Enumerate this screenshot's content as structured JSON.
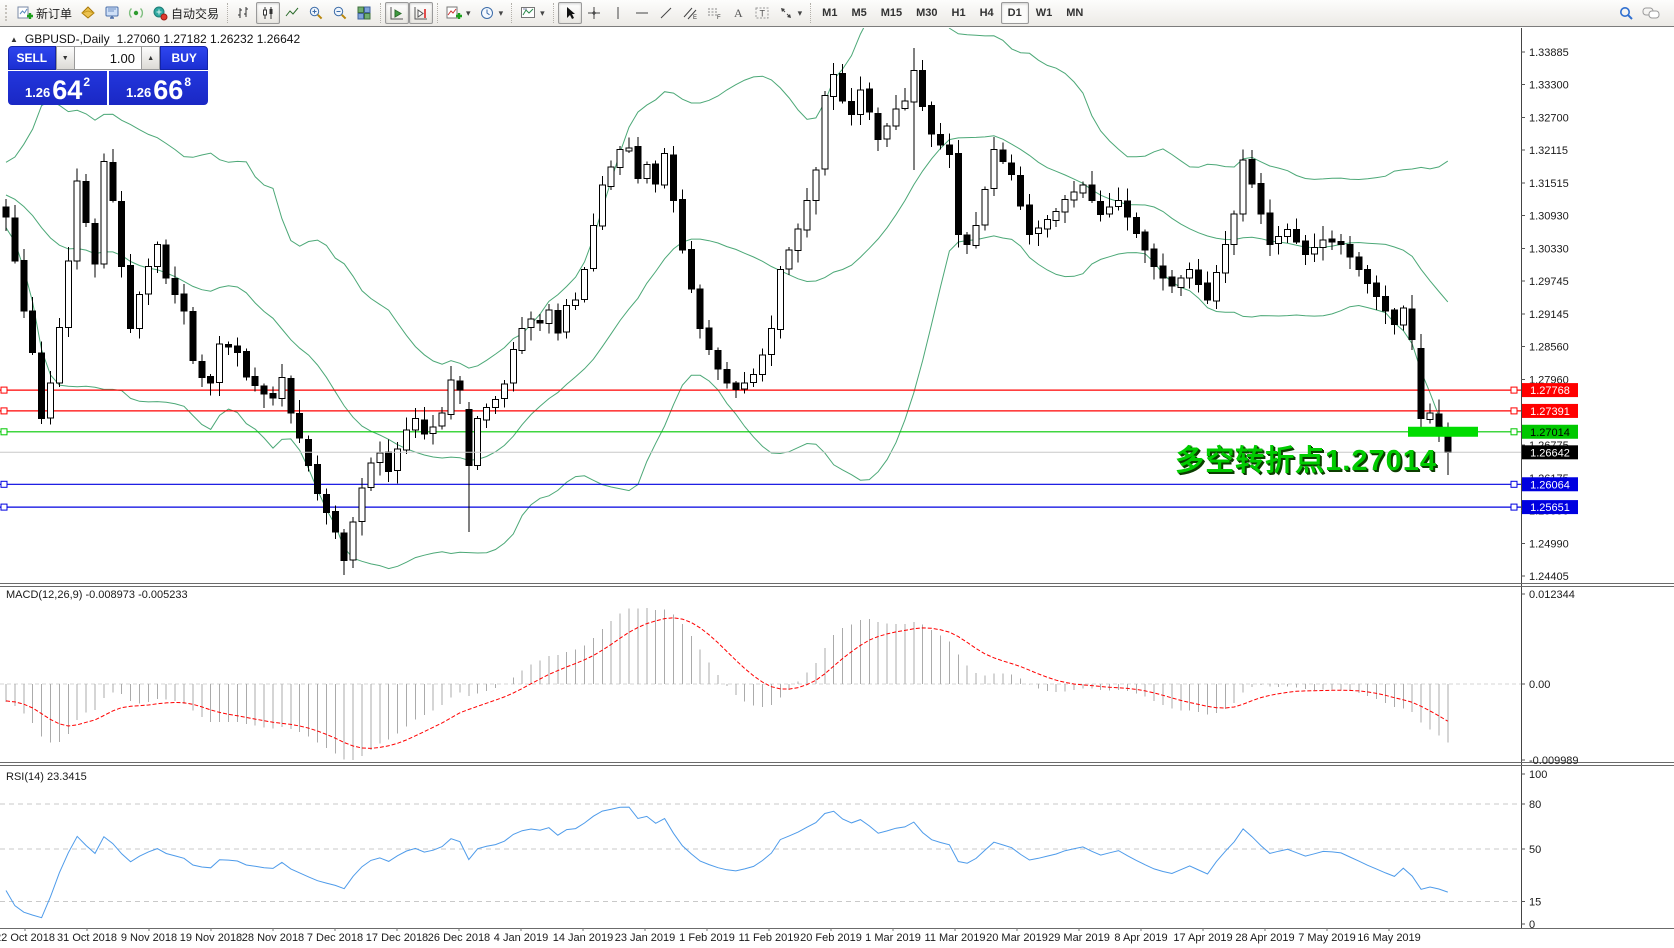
{
  "toolbar": {
    "new_order_label": "新订单",
    "autotrade_label": "自动交易",
    "timeframes": [
      "M1",
      "M5",
      "M15",
      "M30",
      "H1",
      "H4",
      "D1",
      "W1",
      "MN"
    ],
    "active_timeframe": "D1"
  },
  "icons": {
    "collapse": "▲",
    "spin_up": "▲",
    "spin_down": "▼",
    "dropdown": "▾"
  },
  "trade_panel": {
    "sell_label": "SELL",
    "buy_label": "BUY",
    "volume": "1.00",
    "sell_price": {
      "prefix": "1.26",
      "big": "64",
      "sup": "2"
    },
    "buy_price": {
      "prefix": "1.26",
      "big": "66",
      "sup": "8"
    }
  },
  "chart": {
    "symbol_period": "GBPUSD-,Daily",
    "ohlc": "1.27060 1.27182 1.26232 1.26642",
    "annotation": "多空转折点1.27014",
    "price_axis_ticks": [
      "1.33885",
      "1.33300",
      "1.32700",
      "1.32115",
      "1.31515",
      "1.30930",
      "1.30330",
      "1.29745",
      "1.29145",
      "1.28560",
      "1.27960",
      "1.27375",
      "1.26775",
      "1.26175",
      "1.25590",
      "1.24990",
      "1.24405"
    ],
    "hlines": [
      {
        "price": 1.27768,
        "label": "1.27768",
        "color": "#FF0000",
        "text_color": "#FFFFFF"
      },
      {
        "price": 1.27391,
        "label": "1.27391",
        "color": "#FF0000",
        "text_color": "#FFFFFF"
      },
      {
        "price": 1.27014,
        "label": "1.27014",
        "color": "#00C800",
        "text_color": "#000000"
      },
      {
        "price": 1.26064,
        "label": "1.26064",
        "color": "#0000E0",
        "text_color": "#FFFFFF"
      },
      {
        "price": 1.25651,
        "label": "1.25651",
        "color": "#0000E0",
        "text_color": "#FFFFFF"
      }
    ],
    "current_price": {
      "price": 1.26642,
      "label": "1.26642",
      "line_color": "#C8C8C8",
      "badge_color": "#000000",
      "text_color": "#FFFFFF"
    },
    "highlight": {
      "color": "#00DC00"
    },
    "colors": {
      "bull": "#FFFFFF",
      "bear": "#000000",
      "outline": "#000000",
      "bands": "#4CA877",
      "annotation": "#00CC00",
      "annotation_shadow": "#0B3D00",
      "axis_text": "#1a1a1a",
      "frame": "#6b6b6b"
    }
  },
  "macd": {
    "label": "MACD(12,26,9) -0.008973 -0.005233",
    "value_main": "-0.008973",
    "value_signal": "-0.005233",
    "axis_ticks": [
      "0.012344",
      "0.00",
      "-0.009989"
    ],
    "hist_color": "#ABABAB",
    "signal_color": "#FF0000"
  },
  "rsi": {
    "label": "RSI(14) 23.3415",
    "value": "23.3415",
    "axis_ticks": [
      100,
      80,
      50,
      15,
      0
    ],
    "levels": [
      80,
      50,
      15
    ],
    "line_color": "#4E9BEA"
  },
  "date_axis": [
    "22 Oct 2018",
    "31 Oct 2018",
    "9 Nov 2018",
    "19 Nov 2018",
    "28 Nov 2018",
    "7 Dec 2018",
    "17 Dec 2018",
    "26 Dec 2018",
    "4 Jan 2019",
    "14 Jan 2019",
    "23 Jan 2019",
    "1 Feb 2019",
    "11 Feb 2019",
    "20 Feb 2019",
    "1 Mar 2019",
    "11 Mar 2019",
    "20 Mar 2019",
    "29 Mar 2019",
    "8 Apr 2019",
    "17 Apr 2019",
    "28 Apr 2019",
    "7 May 2019",
    "16 May 2019"
  ],
  "chart_data": {
    "type": "candlestick",
    "symbol": "GBPUSD",
    "timeframe": "Daily",
    "ylim": [
      1.24405,
      1.33885
    ],
    "candle_count": 163,
    "close_keypoints": [
      [
        0,
        1.309
      ],
      [
        1,
        1.301
      ],
      [
        2,
        1.292
      ],
      [
        3,
        1.2845
      ],
      [
        4,
        1.2725
      ],
      [
        5,
        1.279
      ],
      [
        6,
        1.289
      ],
      [
        7,
        1.301
      ],
      [
        8,
        1.3155
      ],
      [
        9,
        1.308
      ],
      [
        10,
        1.3005
      ],
      [
        11,
        1.319
      ],
      [
        12,
        1.312
      ],
      [
        13,
        1.3
      ],
      [
        14,
        1.2888
      ],
      [
        15,
        1.295
      ],
      [
        16,
        1.3
      ],
      [
        17,
        1.304
      ],
      [
        18,
        1.298
      ],
      [
        19,
        1.295
      ],
      [
        20,
        1.292
      ],
      [
        21,
        1.283
      ],
      [
        22,
        1.28
      ],
      [
        23,
        1.279
      ],
      [
        24,
        1.286
      ],
      [
        25,
        1.2855
      ],
      [
        26,
        1.2845
      ],
      [
        27,
        1.28
      ],
      [
        28,
        1.2785
      ],
      [
        29,
        1.277
      ],
      [
        30,
        1.2762
      ],
      [
        31,
        1.28
      ],
      [
        32,
        1.2735
      ],
      [
        33,
        1.269
      ],
      [
        34,
        1.264
      ],
      [
        35,
        1.259
      ],
      [
        36,
        1.2555
      ],
      [
        37,
        1.252
      ],
      [
        38,
        1.2468
      ],
      [
        39,
        1.2538
      ],
      [
        40,
        1.26
      ],
      [
        41,
        1.2645
      ],
      [
        42,
        1.2663
      ],
      [
        43,
        1.263
      ],
      [
        44,
        1.267
      ],
      [
        45,
        1.2705
      ],
      [
        46,
        1.2725
      ],
      [
        47,
        1.2697
      ],
      [
        48,
        1.271
      ],
      [
        49,
        1.2735
      ],
      [
        50,
        1.2795
      ],
      [
        51,
        1.2777
      ],
      [
        52,
        1.264
      ],
      [
        53,
        1.2725
      ],
      [
        54,
        1.2745
      ],
      [
        55,
        1.276
      ],
      [
        56,
        1.2788
      ],
      [
        57,
        1.285
      ],
      [
        58,
        1.2888
      ],
      [
        59,
        1.2905
      ],
      [
        60,
        1.2898
      ],
      [
        61,
        1.2922
      ],
      [
        62,
        1.288
      ],
      [
        63,
        1.293
      ],
      [
        64,
        1.294
      ],
      [
        65,
        1.2995
      ],
      [
        66,
        1.3075
      ],
      [
        67,
        1.3148
      ],
      [
        68,
        1.318
      ],
      [
        69,
        1.3212
      ],
      [
        70,
        1.3215
      ],
      [
        71,
        1.316
      ],
      [
        72,
        1.3185
      ],
      [
        73,
        1.315
      ],
      [
        74,
        1.3205
      ],
      [
        75,
        1.312
      ],
      [
        76,
        1.303
      ],
      [
        77,
        1.296
      ],
      [
        78,
        1.2888
      ],
      [
        79,
        1.285
      ],
      [
        80,
        1.2815
      ],
      [
        81,
        1.279
      ],
      [
        82,
        1.2778
      ],
      [
        83,
        1.279
      ],
      [
        84,
        1.2805
      ],
      [
        85,
        1.284
      ],
      [
        86,
        1.2888
      ],
      [
        87,
        1.2995
      ],
      [
        88,
        1.303
      ],
      [
        89,
        1.3068
      ],
      [
        90,
        1.312
      ],
      [
        91,
        1.3175
      ],
      [
        92,
        1.331
      ],
      [
        93,
        1.3348
      ],
      [
        94,
        1.33
      ],
      [
        95,
        1.3275
      ],
      [
        96,
        1.332
      ],
      [
        97,
        1.328
      ],
      [
        98,
        1.323
      ],
      [
        99,
        1.3255
      ],
      [
        100,
        1.3285
      ],
      [
        101,
        1.33
      ],
      [
        102,
        1.3355
      ],
      [
        103,
        1.329
      ],
      [
        104,
        1.324
      ],
      [
        105,
        1.322
      ],
      [
        106,
        1.3203
      ],
      [
        107,
        1.3058
      ],
      [
        108,
        1.304
      ],
      [
        109,
        1.3075
      ],
      [
        110,
        1.314
      ],
      [
        111,
        1.3212
      ],
      [
        112,
        1.319
      ],
      [
        113,
        1.3167
      ],
      [
        114,
        1.311
      ],
      [
        115,
        1.3058
      ],
      [
        116,
        1.307
      ],
      [
        117,
        1.3085
      ],
      [
        118,
        1.31
      ],
      [
        119,
        1.3122
      ],
      [
        120,
        1.3135
      ],
      [
        121,
        1.3148
      ],
      [
        122,
        1.312
      ],
      [
        123,
        1.3095
      ],
      [
        124,
        1.3108
      ],
      [
        125,
        1.312
      ],
      [
        126,
        1.309
      ],
      [
        127,
        1.306
      ],
      [
        128,
        1.303
      ],
      [
        129,
        1.3
      ],
      [
        130,
        1.298
      ],
      [
        131,
        1.2965
      ],
      [
        132,
        1.298
      ],
      [
        133,
        1.2995
      ],
      [
        134,
        1.2968
      ],
      [
        135,
        1.294
      ],
      [
        136,
        1.299
      ],
      [
        137,
        1.304
      ],
      [
        138,
        1.3095
      ],
      [
        139,
        1.3193
      ],
      [
        140,
        1.315
      ],
      [
        141,
        1.3095
      ],
      [
        142,
        1.304
      ],
      [
        143,
        1.3055
      ],
      [
        144,
        1.3067
      ],
      [
        145,
        1.3045
      ],
      [
        146,
        1.3022
      ],
      [
        147,
        1.3035
      ],
      [
        148,
        1.3048
      ],
      [
        149,
        1.3045
      ],
      [
        150,
        1.304
      ],
      [
        151,
        1.3018
      ],
      [
        152,
        1.2995
      ],
      [
        153,
        1.297
      ],
      [
        154,
        1.2946
      ],
      [
        155,
        1.292
      ],
      [
        156,
        1.2895
      ],
      [
        157,
        1.2925
      ],
      [
        158,
        1.2868
      ],
      [
        159,
        1.2725
      ],
      [
        160,
        1.2735
      ],
      [
        161,
        1.2708
      ],
      [
        162,
        1.26642
      ]
    ],
    "overrides": {
      "8": {
        "h": 1.3178
      },
      "11": {
        "h": 1.3205
      },
      "36": {
        "l": 1.2534
      },
      "38": {
        "l": 1.2442
      },
      "39": {
        "l": 1.2455
      },
      "52": {
        "o": 1.2742,
        "h": 1.2755,
        "l": 1.252
      },
      "93": {
        "h": 1.3369
      },
      "102": {
        "h": 1.3396,
        "l": 1.3175
      },
      "139": {
        "h": 1.3212
      },
      "159": {
        "o": 1.2852,
        "l": 1.2702
      },
      "161": {
        "h": 1.276
      },
      "162": {
        "o": 1.2706,
        "h": 1.27182,
        "l": 1.26232,
        "c": 1.26642
      }
    },
    "indicators": [
      {
        "name": "Bollinger Bands",
        "period": 20,
        "deviation": 2
      },
      {
        "name": "MACD",
        "fast": 12,
        "slow": 26,
        "signal": 9
      },
      {
        "name": "RSI",
        "period": 14
      }
    ]
  }
}
